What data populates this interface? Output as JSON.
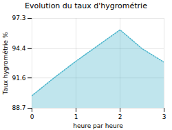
{
  "chart_data": {
    "type": "area",
    "title": "Evolution du taux d'hygrométrie",
    "xlabel": "heure par heure",
    "ylabel": "Taux hygrométrie %",
    "x": [
      0,
      0.5,
      1,
      2,
      2.5,
      3
    ],
    "values": [
      89.9,
      91.6,
      93.2,
      96.2,
      94.4,
      93.1
    ],
    "color": "#4ab5cc",
    "line_style": "dotted",
    "xlim": [
      0,
      3
    ],
    "ylim": [
      88.7,
      97.3
    ],
    "xticks": [
      0,
      1,
      2,
      3
    ],
    "yticks": [
      88.7,
      91.6,
      94.4,
      97.3
    ],
    "grid": true
  }
}
